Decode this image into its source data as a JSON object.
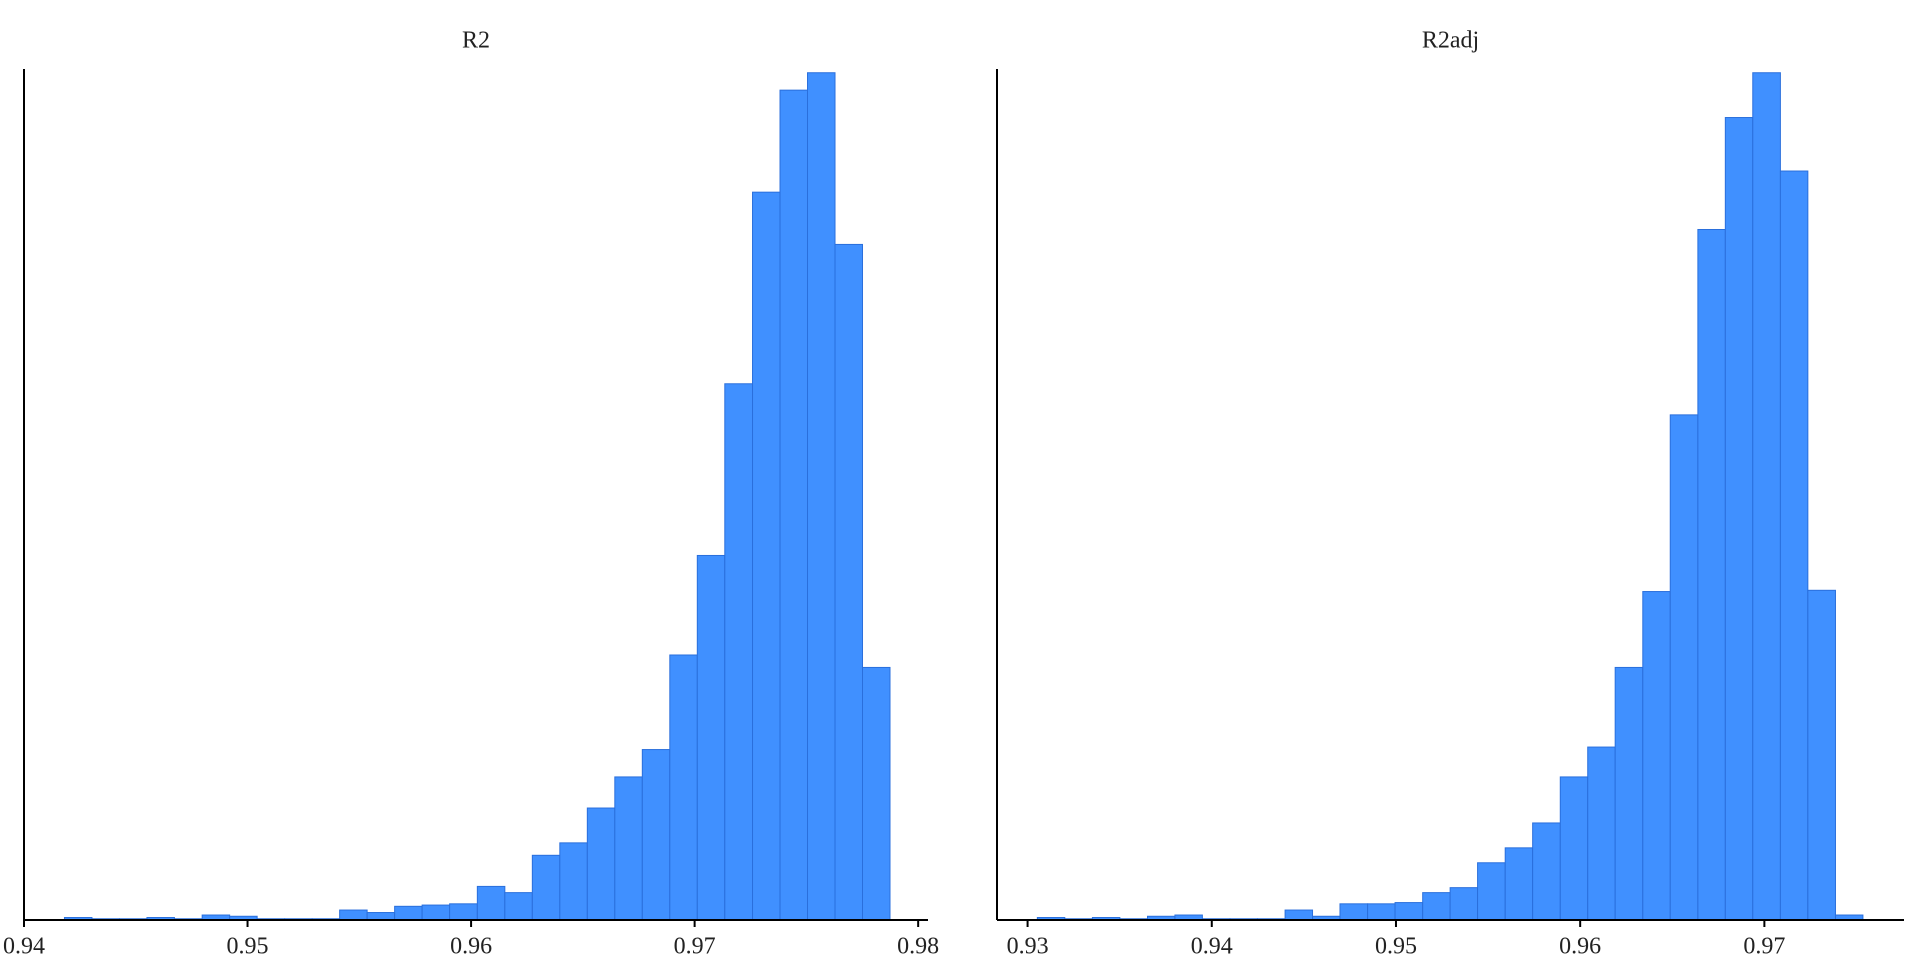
{
  "chart_data": [
    {
      "type": "histogram",
      "title": "R2",
      "color": "#4090ff",
      "edgecolor": "#2a6fdc",
      "bins": [
        0.94181,
        0.94304,
        0.94427,
        0.9455,
        0.94673,
        0.94797,
        0.9492,
        0.95043,
        0.95166,
        0.95289,
        0.95412,
        0.95535,
        0.95658,
        0.95781,
        0.95904,
        0.96028,
        0.96151,
        0.96274,
        0.96397,
        0.9652,
        0.96643,
        0.96766,
        0.96889,
        0.97012,
        0.97135,
        0.97259,
        0.97382,
        0.97505,
        0.97628,
        0.97751,
        0.97874
      ],
      "values": [
        2,
        1,
        1,
        2,
        1,
        4,
        3,
        1,
        1,
        1,
        8,
        6,
        11,
        12,
        13,
        27,
        22,
        52,
        62,
        90,
        115,
        137,
        213,
        293,
        431,
        585,
        667,
        681,
        543,
        203
      ],
      "xlim": [
        0.94,
        0.98044
      ],
      "xticks": [
        0.94,
        0.95,
        0.96,
        0.97,
        0.98
      ],
      "ylim": [
        0,
        684
      ]
    },
    {
      "type": "histogram",
      "title": "R2adj",
      "color": "#4090ff",
      "edgecolor": "#2a6fdc",
      "bins": [
        0.93053,
        0.93202,
        0.93352,
        0.93501,
        0.93651,
        0.938,
        0.93949,
        0.94099,
        0.94248,
        0.94398,
        0.94547,
        0.94696,
        0.94846,
        0.94995,
        0.95145,
        0.95294,
        0.95443,
        0.95593,
        0.95742,
        0.95892,
        0.96041,
        0.9619,
        0.9634,
        0.96489,
        0.96639,
        0.96788,
        0.96937,
        0.97087,
        0.97236,
        0.97386,
        0.97535
      ],
      "values": [
        2,
        1,
        2,
        1,
        3,
        4,
        1,
        1,
        1,
        8,
        3,
        13,
        13,
        14,
        22,
        26,
        46,
        58,
        78,
        115,
        139,
        203,
        264,
        406,
        555,
        645,
        681,
        602,
        265,
        4
      ],
      "xlim": [
        0.92834,
        0.97758
      ],
      "xticks": [
        0.93,
        0.94,
        0.95,
        0.96,
        0.97
      ],
      "ylim": [
        0,
        684
      ]
    }
  ]
}
